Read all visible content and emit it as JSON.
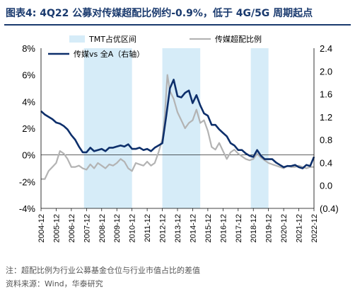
{
  "figure": {
    "title": "图表4:  4Q22 公募对传媒超配比例约-0.9%，低于 4G/5G 周期起点",
    "note": "注：超配比例为行业公募基金仓位与行业市值占比的差值",
    "source": "资料来源：Wind，华泰研究"
  },
  "chart_data": {
    "type": "line",
    "x_tick_labels": [
      "2004-12",
      "2005-12",
      "2006-12",
      "2007-12",
      "2008-12",
      "2009-12",
      "2010-12",
      "2011-12",
      "2012-12",
      "2013-12",
      "2014-12",
      "2015-12",
      "2016-12",
      "2017-12",
      "2018-12",
      "2019-12",
      "2020-12",
      "2021-12",
      "2022-12"
    ],
    "x_range": [
      "2004-12",
      "2022-12"
    ],
    "y_left": {
      "ticks": [
        "8%",
        "6%",
        "4%",
        "2%",
        "0%",
        "-2%",
        "-4%"
      ],
      "range": [
        -4,
        8
      ]
    },
    "y_right": {
      "ticks": [
        "2.4",
        "2.0",
        "1.6",
        "1.2",
        "0.8",
        "0.4",
        "0.0",
        "(0.4)"
      ],
      "range": [
        -0.4,
        2.4
      ]
    },
    "legend": [
      "TMT占优区间",
      "传媒超配比例",
      "传媒vs 全A（右轴）"
    ],
    "shaded_periods": [
      {
        "label": "TMT占优区间",
        "start": "2007-10",
        "end": "2010-12"
      },
      {
        "label": "TMT占优区间",
        "start": "2012-12",
        "end": "2015-06"
      },
      {
        "label": "TMT占优区间",
        "start": "2018-10",
        "end": "2019-12"
      }
    ],
    "series": [
      {
        "name": "传媒超配比例",
        "axis": "left",
        "color": "#b3b3b3",
        "points": [
          [
            "2004-12",
            -1.8
          ],
          [
            "2005-03",
            -1.8
          ],
          [
            "2005-06",
            -1.2
          ],
          [
            "2005-09",
            -0.9
          ],
          [
            "2005-12",
            -0.6
          ],
          [
            "2006-03",
            0.3
          ],
          [
            "2006-06",
            0.1
          ],
          [
            "2006-09",
            -0.3
          ],
          [
            "2006-12",
            -0.9
          ],
          [
            "2007-03",
            -0.9
          ],
          [
            "2007-06",
            -0.8
          ],
          [
            "2007-09",
            -1.0
          ],
          [
            "2007-12",
            -1.1
          ],
          [
            "2008-03",
            -0.7
          ],
          [
            "2008-06",
            -1.0
          ],
          [
            "2008-09",
            -0.6
          ],
          [
            "2008-12",
            -0.8
          ],
          [
            "2009-03",
            -1.0
          ],
          [
            "2009-06",
            -0.7
          ],
          [
            "2009-09",
            -0.8
          ],
          [
            "2009-12",
            -0.6
          ],
          [
            "2010-03",
            -0.3
          ],
          [
            "2010-06",
            -0.5
          ],
          [
            "2010-09",
            -1.0
          ],
          [
            "2010-12",
            -1.2
          ],
          [
            "2011-03",
            -0.6
          ],
          [
            "2011-06",
            -0.7
          ],
          [
            "2011-09",
            -0.8
          ],
          [
            "2011-12",
            -0.5
          ],
          [
            "2012-03",
            -0.8
          ],
          [
            "2012-06",
            -0.6
          ],
          [
            "2012-09",
            0.2
          ],
          [
            "2012-12",
            1.2
          ],
          [
            "2013-02",
            3.0
          ],
          [
            "2013-04",
            6.0
          ],
          [
            "2013-06",
            4.8
          ],
          [
            "2013-09",
            4.2
          ],
          [
            "2013-12",
            3.2
          ],
          [
            "2014-03",
            2.6
          ],
          [
            "2014-06",
            2.0
          ],
          [
            "2014-09",
            2.4
          ],
          [
            "2014-12",
            2.6
          ],
          [
            "2015-03",
            3.4
          ],
          [
            "2015-06",
            2.4
          ],
          [
            "2015-09",
            2.6
          ],
          [
            "2015-12",
            1.8
          ],
          [
            "2016-03",
            0.6
          ],
          [
            "2016-06",
            0.4
          ],
          [
            "2016-09",
            0.9
          ],
          [
            "2016-12",
            0.3
          ],
          [
            "2017-03",
            -0.3
          ],
          [
            "2017-06",
            0.2
          ],
          [
            "2017-09",
            0.4
          ],
          [
            "2017-12",
            0.1
          ],
          [
            "2018-03",
            -0.1
          ],
          [
            "2018-06",
            -0.3
          ],
          [
            "2018-09",
            -0.4
          ],
          [
            "2018-12",
            -0.3
          ],
          [
            "2019-03",
            0.1
          ],
          [
            "2019-06",
            -0.2
          ],
          [
            "2019-09",
            -0.4
          ],
          [
            "2019-12",
            -0.6
          ],
          [
            "2020-03",
            -0.7
          ],
          [
            "2020-06",
            -0.8
          ],
          [
            "2020-09",
            -0.9
          ],
          [
            "2020-12",
            -1.0
          ],
          [
            "2021-03",
            -0.8
          ],
          [
            "2021-06",
            -0.9
          ],
          [
            "2021-09",
            -0.9
          ],
          [
            "2021-12",
            -0.8
          ],
          [
            "2022-03",
            -0.9
          ],
          [
            "2022-06",
            -1.0
          ],
          [
            "2022-09",
            -0.9
          ],
          [
            "2022-12",
            -0.9
          ]
        ]
      },
      {
        "name": "传媒vs 全A（右轴）",
        "axis": "right",
        "color": "#0d2f6b",
        "points": [
          [
            "2004-12",
            1.3
          ],
          [
            "2005-03",
            1.24
          ],
          [
            "2005-06",
            1.2
          ],
          [
            "2005-09",
            1.16
          ],
          [
            "2005-12",
            1.1
          ],
          [
            "2006-03",
            1.08
          ],
          [
            "2006-06",
            1.04
          ],
          [
            "2006-09",
            0.98
          ],
          [
            "2006-12",
            0.88
          ],
          [
            "2007-03",
            0.8
          ],
          [
            "2007-06",
            0.68
          ],
          [
            "2007-09",
            0.58
          ],
          [
            "2007-12",
            0.58
          ],
          [
            "2008-03",
            0.66
          ],
          [
            "2008-06",
            0.6
          ],
          [
            "2008-09",
            0.62
          ],
          [
            "2008-12",
            0.64
          ],
          [
            "2009-03",
            0.6
          ],
          [
            "2009-06",
            0.66
          ],
          [
            "2009-09",
            0.66
          ],
          [
            "2009-12",
            0.68
          ],
          [
            "2010-03",
            0.7
          ],
          [
            "2010-06",
            0.68
          ],
          [
            "2010-09",
            0.72
          ],
          [
            "2010-12",
            0.64
          ],
          [
            "2011-03",
            0.64
          ],
          [
            "2011-06",
            0.66
          ],
          [
            "2011-09",
            0.62
          ],
          [
            "2011-12",
            0.64
          ],
          [
            "2012-03",
            0.6
          ],
          [
            "2012-06",
            0.66
          ],
          [
            "2012-09",
            0.7
          ],
          [
            "2012-12",
            0.74
          ],
          [
            "2013-03",
            1.2
          ],
          [
            "2013-06",
            1.7
          ],
          [
            "2013-09",
            1.85
          ],
          [
            "2013-12",
            1.56
          ],
          [
            "2014-03",
            1.54
          ],
          [
            "2014-06",
            1.62
          ],
          [
            "2014-09",
            1.66
          ],
          [
            "2014-12",
            1.44
          ],
          [
            "2015-03",
            1.58
          ],
          [
            "2015-06",
            1.4
          ],
          [
            "2015-09",
            1.26
          ],
          [
            "2015-12",
            1.22
          ],
          [
            "2016-03",
            1.06
          ],
          [
            "2016-06",
            1.06
          ],
          [
            "2016-09",
            0.98
          ],
          [
            "2016-12",
            0.92
          ],
          [
            "2017-03",
            0.86
          ],
          [
            "2017-06",
            0.74
          ],
          [
            "2017-09",
            0.7
          ],
          [
            "2017-12",
            0.62
          ],
          [
            "2018-03",
            0.62
          ],
          [
            "2018-06",
            0.56
          ],
          [
            "2018-09",
            0.52
          ],
          [
            "2018-12",
            0.5
          ],
          [
            "2019-03",
            0.62
          ],
          [
            "2019-06",
            0.52
          ],
          [
            "2019-09",
            0.46
          ],
          [
            "2019-12",
            0.46
          ],
          [
            "2020-03",
            0.46
          ],
          [
            "2020-06",
            0.4
          ],
          [
            "2020-09",
            0.36
          ],
          [
            "2020-12",
            0.32
          ],
          [
            "2021-03",
            0.34
          ],
          [
            "2021-06",
            0.34
          ],
          [
            "2021-09",
            0.36
          ],
          [
            "2021-12",
            0.32
          ],
          [
            "2022-03",
            0.3
          ],
          [
            "2022-06",
            0.36
          ],
          [
            "2022-09",
            0.34
          ],
          [
            "2022-12",
            0.5
          ]
        ]
      }
    ]
  }
}
